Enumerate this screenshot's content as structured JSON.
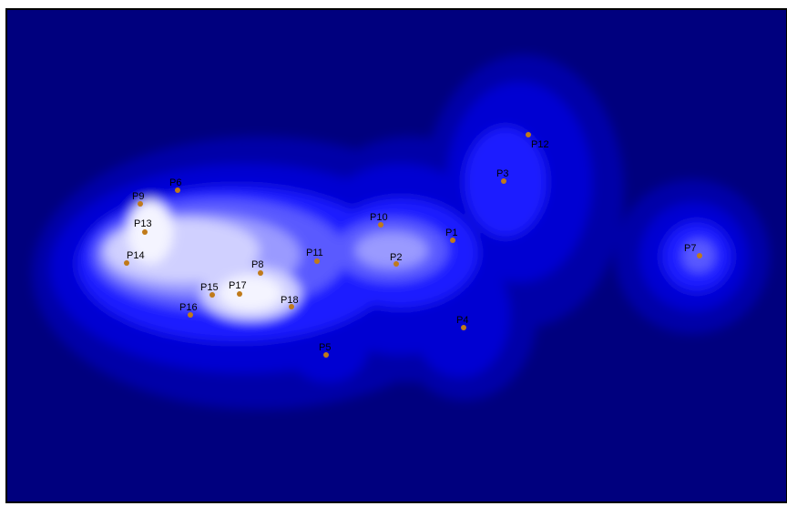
{
  "map": {
    "background_color": "#00007e",
    "frame_color": "#000000",
    "point_color": "#c07a1a",
    "density_colormap": [
      "#00007e",
      "#0000a8",
      "#0000d2",
      "#1a1aff",
      "#5a5aff",
      "#9a9aff",
      "#d0d0ff",
      "#f4f4ff"
    ],
    "points": [
      {
        "label": "P1"
      },
      {
        "label": "P2"
      },
      {
        "label": "P3"
      },
      {
        "label": "P4"
      },
      {
        "label": "P5"
      },
      {
        "label": "P6"
      },
      {
        "label": "P7"
      },
      {
        "label": "P8"
      },
      {
        "label": "P9"
      },
      {
        "label": "P10"
      },
      {
        "label": "P11"
      },
      {
        "label": "P12"
      },
      {
        "label": "P13"
      },
      {
        "label": "P14"
      },
      {
        "label": "P15"
      },
      {
        "label": "P16"
      },
      {
        "label": "P17"
      },
      {
        "label": "P18"
      }
    ]
  }
}
